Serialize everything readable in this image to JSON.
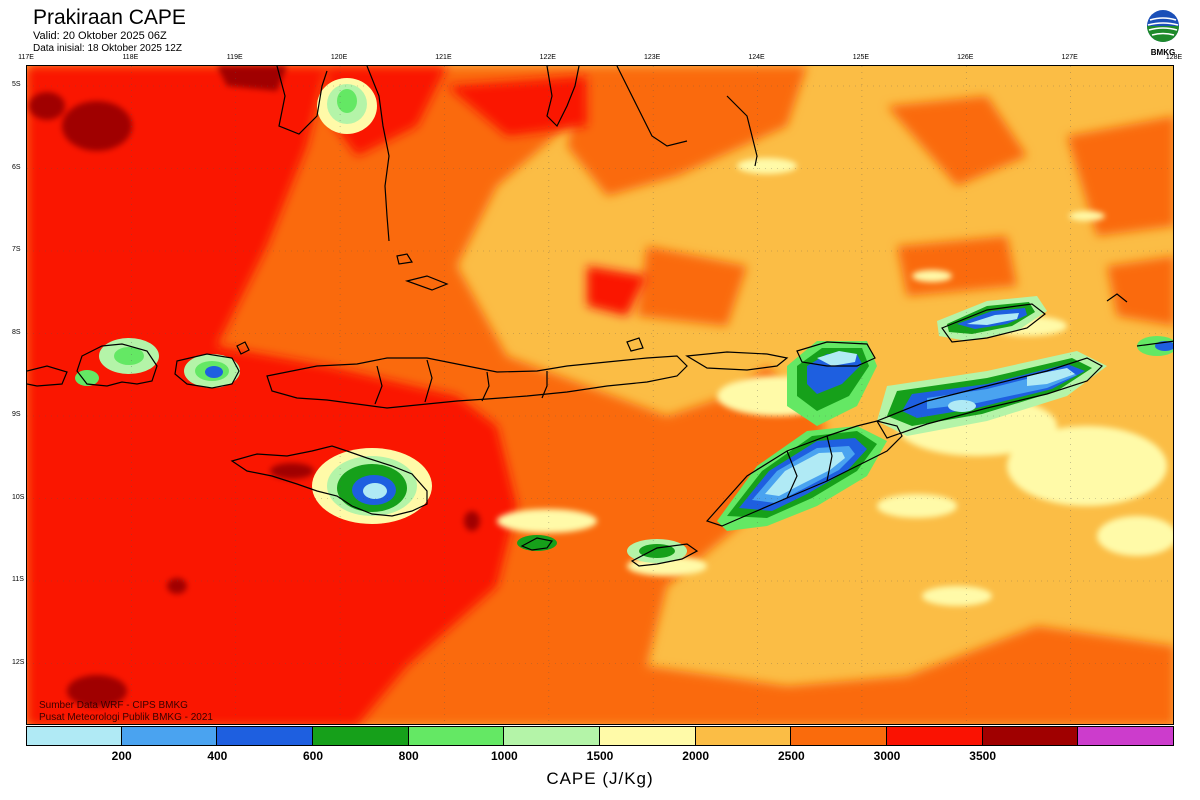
{
  "header": {
    "title": "Prakiraan CAPE",
    "valid": "Valid: 20 Oktober 2025 06Z",
    "init": "Data inisial: 18 Oktober 2025 12Z",
    "logo_text": "BMKG"
  },
  "axes": {
    "lon_labels": [
      "117E",
      "118E",
      "119E",
      "120E",
      "121E",
      "122E",
      "123E",
      "124E",
      "125E",
      "126E",
      "127E",
      "128E"
    ],
    "lat_labels": [
      "5S",
      "6S",
      "7S",
      "8S",
      "9S",
      "10S",
      "11S",
      "12S"
    ],
    "lon_range": [
      117,
      128
    ],
    "lat_range": [
      -4.8,
      -12.8
    ]
  },
  "credits": {
    "source": "Sumber Data WRF - CIPS BMKG",
    "publisher": "Pusat Meteorologi Publik BMKG - 2021"
  },
  "colorbar": {
    "title": "CAPE (J/Kg)",
    "tick_labels": [
      "200",
      "400",
      "600",
      "800",
      "1000",
      "1500",
      "2000",
      "2500",
      "3000",
      "3500"
    ],
    "colors": [
      "#b0eaf5",
      "#4aa3f0",
      "#1e5fe0",
      "#16a01a",
      "#64e864",
      "#b4f4a8",
      "#fffaa8",
      "#fbbd45",
      "#fa6b0c",
      "#fa1202",
      "#a00000",
      "#cc3ccc"
    ]
  },
  "map": {
    "base_color": "#fbbd45",
    "coastline_color": "#000000"
  }
}
